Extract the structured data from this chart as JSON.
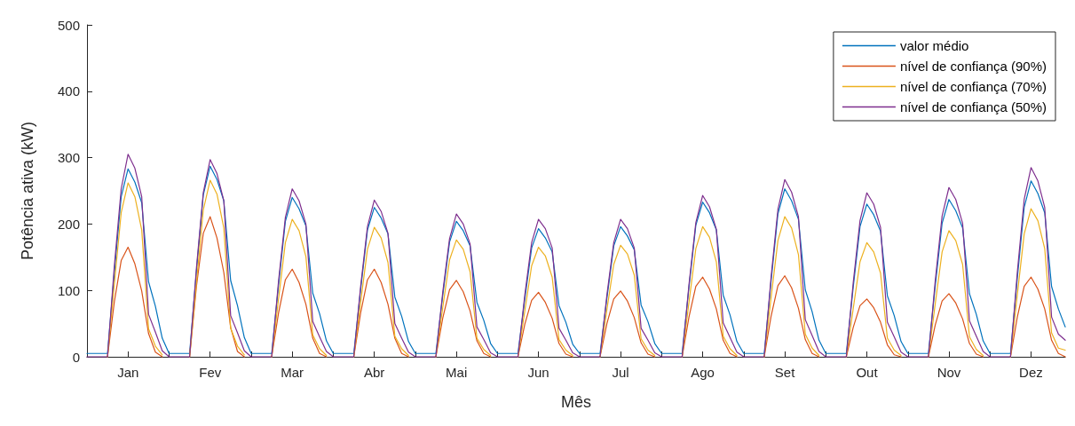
{
  "chart_data": {
    "type": "line",
    "xlabel": "Mês",
    "ylabel": "Potência ativa (kW)",
    "categories": [
      null,
      null,
      null,
      null,
      null,
      null,
      "Jan",
      null,
      null,
      null,
      null,
      null,
      null,
      null,
      null,
      null,
      null,
      null,
      "Fev",
      null,
      null,
      null,
      null,
      null,
      null,
      null,
      null,
      null,
      null,
      null,
      "Mar",
      null,
      null,
      null,
      null,
      null,
      null,
      null,
      null,
      null,
      null,
      null,
      "Abr",
      null,
      null,
      null,
      null,
      null,
      null,
      null,
      null,
      null,
      null,
      null,
      "Mai",
      null,
      null,
      null,
      null,
      null,
      null,
      null,
      null,
      null,
      null,
      null,
      "Jun",
      null,
      null,
      null,
      null,
      null,
      null,
      null,
      null,
      null,
      null,
      null,
      "Jul",
      null,
      null,
      null,
      null,
      null,
      null,
      null,
      null,
      null,
      null,
      null,
      "Ago",
      null,
      null,
      null,
      null,
      null,
      null,
      null,
      null,
      null,
      null,
      null,
      "Set",
      null,
      null,
      null,
      null,
      null,
      null,
      null,
      null,
      null,
      null,
      null,
      "Out",
      null,
      null,
      null,
      null,
      null,
      null,
      null,
      null,
      null,
      null,
      null,
      "Nov",
      null,
      null,
      null,
      null,
      null,
      null,
      null,
      null,
      null,
      null,
      null,
      "Dez",
      null,
      null,
      null,
      null,
      null
    ],
    "ylim": [
      0,
      500
    ],
    "yticks": [
      0,
      100,
      200,
      300,
      400,
      500
    ],
    "grid": false,
    "legend": "top right",
    "marker": "none",
    "line_style": "solid",
    "series": [
      {
        "name": "valor médio",
        "color": "#0072bd",
        "values": [
          5,
          5,
          5,
          5,
          127,
          241,
          283,
          263,
          232,
          113,
          76,
          28,
          5,
          5,
          5,
          5,
          129,
          244,
          287,
          267,
          235,
          115,
          77,
          29,
          5,
          5,
          5,
          5,
          108,
          204,
          240,
          223,
          197,
          96,
          65,
          24,
          5,
          5,
          5,
          5,
          101,
          191,
          225,
          209,
          185,
          90,
          61,
          23,
          5,
          5,
          5,
          5,
          92,
          173,
          204,
          190,
          167,
          82,
          55,
          20,
          5,
          5,
          5,
          5,
          87,
          164,
          193,
          179,
          158,
          77,
          52,
          19,
          5,
          5,
          5,
          5,
          88,
          167,
          196,
          182,
          161,
          78,
          53,
          20,
          5,
          5,
          5,
          5,
          105,
          198,
          233,
          217,
          191,
          93,
          63,
          23,
          5,
          5,
          5,
          5,
          114,
          215,
          253,
          235,
          207,
          101,
          68,
          25,
          5,
          5,
          5,
          5,
          104,
          196,
          230,
          214,
          189,
          92,
          62,
          23,
          5,
          5,
          5,
          5,
          107,
          201,
          237,
          220,
          194,
          95,
          64,
          24,
          5,
          5,
          5,
          5,
          119,
          225,
          265,
          246,
          217,
          106,
          72,
          45
        ]
      },
      {
        "name": "nível de confiança (90%)",
        "color": "#d95319",
        "values": [
          null,
          null,
          null,
          0,
          83,
          145,
          165,
          140,
          99,
          35,
          7,
          0,
          null,
          null,
          null,
          0,
          106,
          186,
          211,
          179,
          127,
          44,
          8,
          0,
          null,
          null,
          null,
          0,
          66,
          116,
          132,
          112,
          79,
          28,
          5,
          0,
          null,
          null,
          null,
          0,
          66,
          116,
          132,
          112,
          79,
          28,
          5,
          0,
          null,
          null,
          null,
          0,
          58,
          101,
          115,
          98,
          69,
          24,
          5,
          0,
          null,
          null,
          null,
          0,
          49,
          85,
          97,
          82,
          58,
          20,
          4,
          0,
          null,
          null,
          null,
          0,
          50,
          87,
          99,
          84,
          59,
          21,
          4,
          0,
          null,
          null,
          null,
          0,
          60,
          106,
          120,
          102,
          72,
          25,
          5,
          0,
          null,
          null,
          null,
          0,
          61,
          107,
          122,
          104,
          73,
          26,
          5,
          0,
          null,
          null,
          null,
          0,
          44,
          77,
          87,
          74,
          52,
          18,
          3,
          0,
          null,
          null,
          null,
          0,
          48,
          84,
          95,
          81,
          57,
          20,
          4,
          0,
          null,
          null,
          null,
          0,
          60,
          106,
          120,
          102,
          72,
          25,
          5,
          0
        ]
      },
      {
        "name": "nível de confiança (70%)",
        "color": "#edb120",
        "values": [
          null,
          null,
          null,
          0,
          110,
          217,
          262,
          241,
          191,
          42,
          16,
          3,
          null,
          null,
          null,
          0,
          112,
          221,
          266,
          245,
          194,
          43,
          16,
          3,
          null,
          null,
          null,
          0,
          87,
          172,
          207,
          190,
          151,
          33,
          12,
          2,
          null,
          null,
          null,
          0,
          82,
          162,
          195,
          179,
          142,
          31,
          12,
          2,
          null,
          null,
          null,
          0,
          74,
          146,
          176,
          162,
          128,
          28,
          11,
          2,
          null,
          null,
          null,
          0,
          69,
          137,
          165,
          152,
          120,
          26,
          10,
          2,
          null,
          null,
          null,
          0,
          71,
          139,
          168,
          155,
          123,
          27,
          10,
          2,
          null,
          null,
          null,
          0,
          82,
          163,
          196,
          180,
          143,
          31,
          12,
          2,
          null,
          null,
          null,
          0,
          89,
          175,
          211,
          194,
          154,
          34,
          13,
          2,
          null,
          null,
          null,
          0,
          72,
          143,
          172,
          158,
          126,
          28,
          10,
          2,
          null,
          null,
          null,
          0,
          80,
          158,
          190,
          175,
          139,
          30,
          11,
          2,
          null,
          null,
          null,
          0,
          94,
          185,
          223,
          205,
          163,
          36,
          13,
          10
        ]
      },
      {
        "name": "nível de confiança (50%)",
        "color": "#7e2f8e",
        "values": [
          0,
          0,
          0,
          0,
          137,
          253,
          305,
          284,
          241,
          64,
          37,
          9,
          0,
          0,
          0,
          0,
          134,
          247,
          297,
          276,
          235,
          62,
          36,
          9,
          0,
          0,
          0,
          0,
          114,
          210,
          253,
          235,
          200,
          53,
          30,
          8,
          0,
          0,
          0,
          0,
          106,
          196,
          236,
          219,
          186,
          50,
          28,
          7,
          0,
          0,
          0,
          0,
          97,
          178,
          215,
          200,
          170,
          45,
          26,
          6,
          0,
          0,
          0,
          0,
          93,
          172,
          207,
          193,
          164,
          43,
          25,
          6,
          0,
          0,
          0,
          0,
          93,
          172,
          207,
          193,
          164,
          43,
          25,
          6,
          0,
          0,
          0,
          0,
          109,
          202,
          243,
          226,
          192,
          51,
          29,
          7,
          0,
          0,
          0,
          0,
          120,
          222,
          267,
          248,
          211,
          56,
          32,
          8,
          0,
          0,
          0,
          0,
          111,
          205,
          247,
          230,
          195,
          52,
          30,
          7,
          0,
          0,
          0,
          0,
          115,
          212,
          255,
          237,
          201,
          54,
          31,
          8,
          0,
          0,
          0,
          0,
          128,
          237,
          285,
          265,
          225,
          60,
          34,
          25
        ]
      }
    ]
  }
}
